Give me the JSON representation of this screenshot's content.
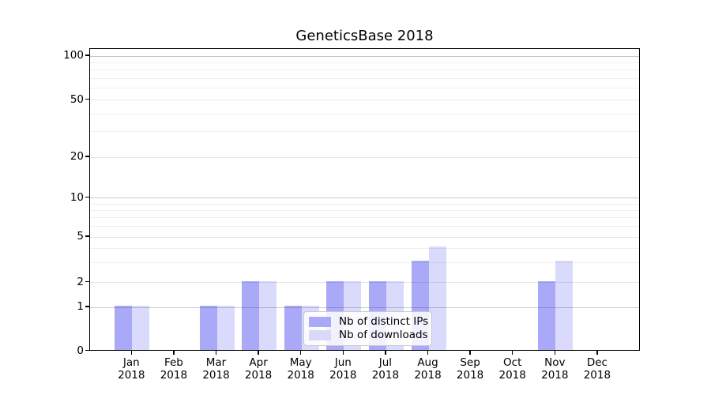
{
  "title": "GeneticsBase 2018",
  "chart_data": {
    "type": "bar",
    "title": "GeneticsBase 2018",
    "categories": [
      {
        "month": "Jan",
        "year": "2018"
      },
      {
        "month": "Feb",
        "year": "2018"
      },
      {
        "month": "Mar",
        "year": "2018"
      },
      {
        "month": "Apr",
        "year": "2018"
      },
      {
        "month": "May",
        "year": "2018"
      },
      {
        "month": "Jun",
        "year": "2018"
      },
      {
        "month": "Jul",
        "year": "2018"
      },
      {
        "month": "Aug",
        "year": "2018"
      },
      {
        "month": "Sep",
        "year": "2018"
      },
      {
        "month": "Oct",
        "year": "2018"
      },
      {
        "month": "Nov",
        "year": "2018"
      },
      {
        "month": "Dec",
        "year": "2018"
      }
    ],
    "series": [
      {
        "name": "Nb of distinct IPs",
        "values": [
          1,
          0,
          1,
          2,
          1,
          2,
          2,
          3,
          0,
          0,
          2,
          0
        ],
        "fill": "rgba(34,34,238,0.39)",
        "swatch": "#a9a9f8"
      },
      {
        "name": "Nb of downloads",
        "values": [
          1,
          0,
          1,
          2,
          1,
          2,
          2,
          4,
          0,
          0,
          3,
          0
        ],
        "fill": "rgba(34,34,238,0.17)",
        "swatch": "#d9d9fb"
      }
    ],
    "y_axis": {
      "scale": "log-with-zero-baseline",
      "tick_values": [
        0,
        1,
        2,
        5,
        10,
        20,
        50,
        100
      ],
      "tick_labels": [
        "0",
        "1",
        "2",
        "5",
        "10",
        "20",
        "50",
        "100"
      ],
      "range": [
        0,
        100
      ]
    },
    "x_axis": {
      "label_format": "month over year, two lines"
    },
    "grid": {
      "orientation": "horizontal",
      "minor_values": [
        3,
        4,
        6,
        7,
        8,
        9,
        30,
        40,
        60,
        70,
        80,
        90
      ],
      "light_major_values": [
        2,
        5,
        20,
        50
      ],
      "emphasized_values": [
        1,
        10,
        100
      ],
      "emphasized_color": "#c8c8c8",
      "light_major_color": "#e6e6e6",
      "minor_color": "#efefef"
    },
    "legend": {
      "position": "lower-center-inside",
      "items": [
        "Nb of distinct IPs",
        "Nb of downloads"
      ]
    },
    "colors": {
      "bar_dark": "#a9a9f8",
      "bar_light": "#d9d9fb",
      "frame": "#000000",
      "background": "#ffffff"
    }
  }
}
